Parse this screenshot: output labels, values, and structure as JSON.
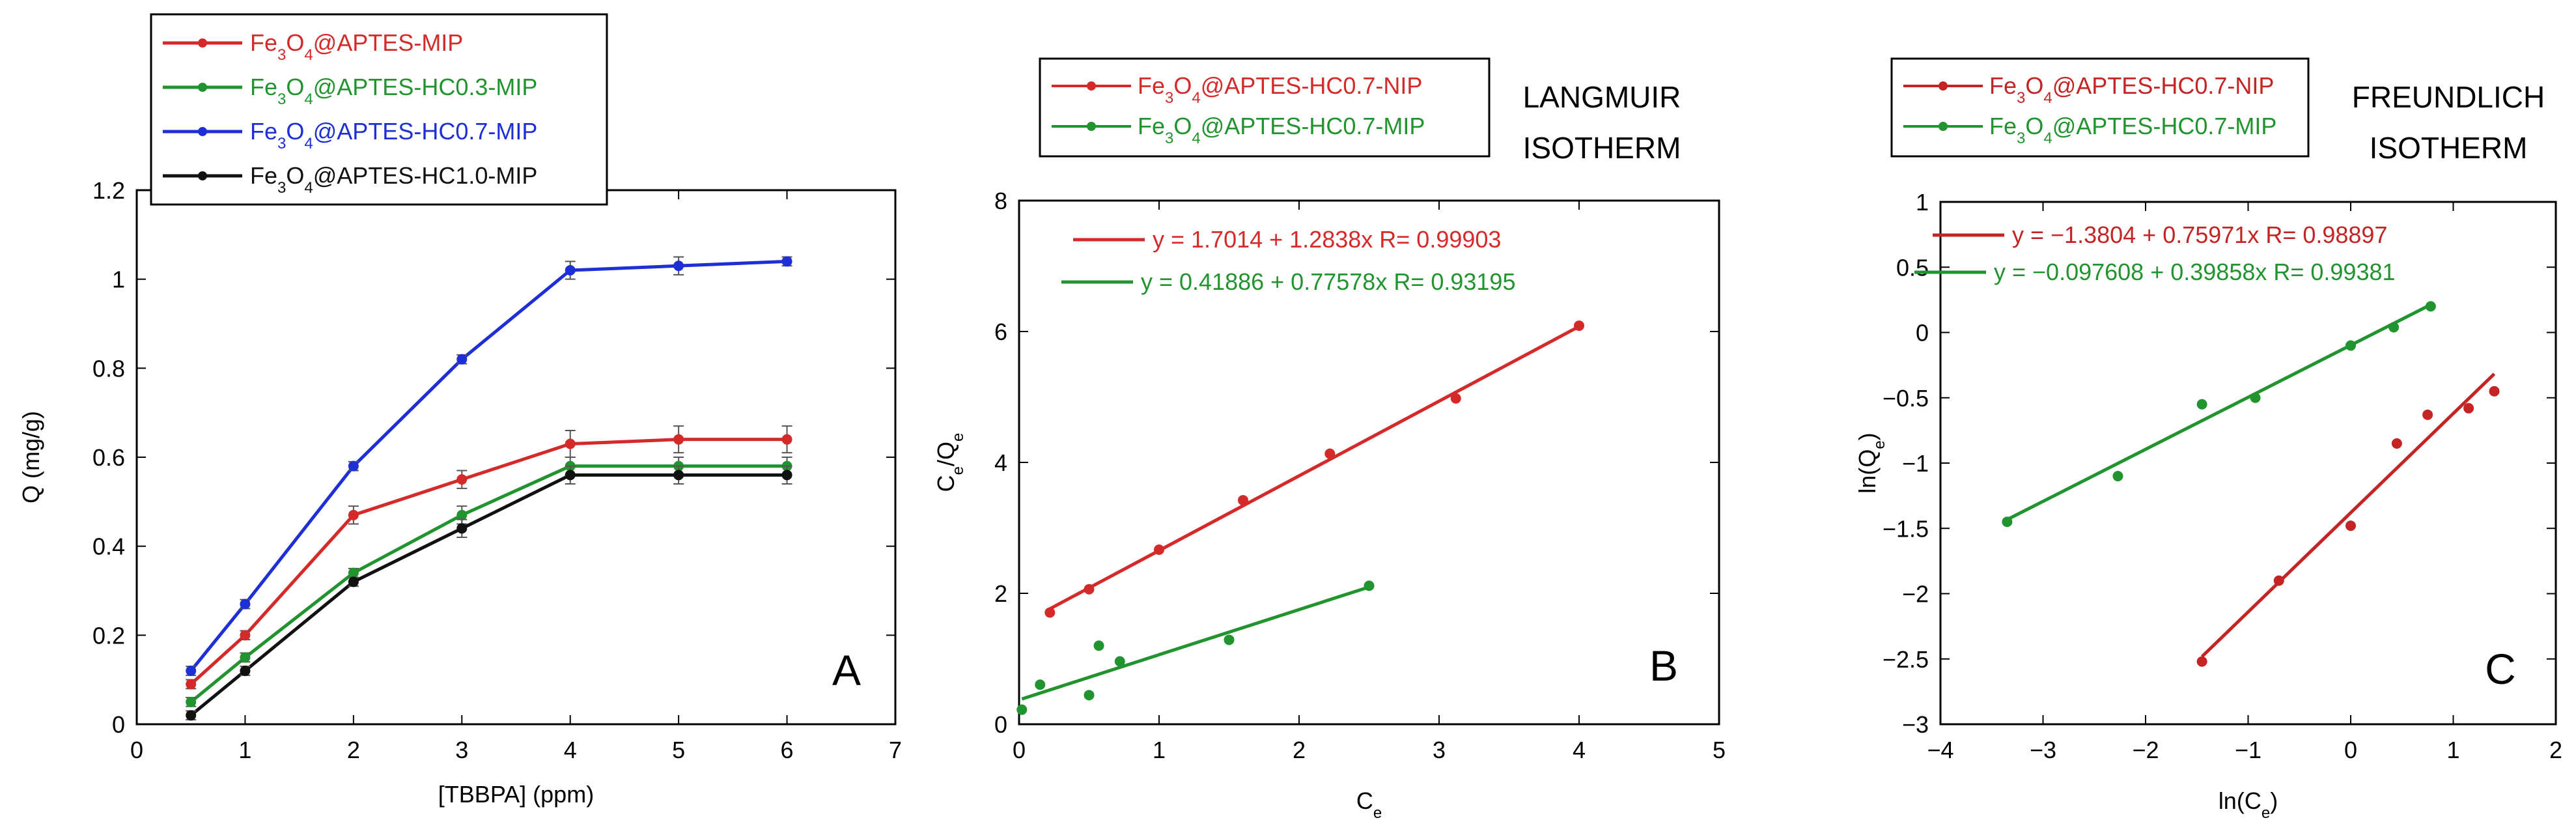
{
  "chart_data": [
    {
      "type": "line",
      "panel_label": "A",
      "xlabel": "[TBBPA] (ppm)",
      "ylabel": "Q (mg/g)",
      "xlim": [
        0,
        7
      ],
      "ylim": [
        0,
        1.2
      ],
      "x_ticks": [
        "0",
        "1",
        "2",
        "3",
        "4",
        "5",
        "6",
        "7"
      ],
      "y_ticks": [
        "0",
        "0.2",
        "0.4",
        "0.6",
        "0.8",
        "1",
        "1.2"
      ],
      "x": [
        0.5,
        1,
        2,
        3,
        4,
        5,
        6
      ],
      "legend_position": "top",
      "series": [
        {
          "name_parts": [
            "Fe",
            "3",
            "O",
            "4",
            "@APTES-MIP"
          ],
          "color": "#d42a2a",
          "values": [
            0.09,
            0.2,
            0.47,
            0.55,
            0.63,
            0.64,
            0.64
          ],
          "errors": [
            0.01,
            0.01,
            0.02,
            0.02,
            0.03,
            0.03,
            0.03
          ]
        },
        {
          "name_parts": [
            "Fe",
            "3",
            "O",
            "4",
            "@APTES-HC0.3-MIP"
          ],
          "color": "#22942f",
          "values": [
            0.05,
            0.15,
            0.34,
            0.47,
            0.58,
            0.58,
            0.58
          ],
          "errors": [
            0.01,
            0.01,
            0.01,
            0.02,
            0.02,
            0.02,
            0.02
          ]
        },
        {
          "name_parts": [
            "Fe",
            "3",
            "O",
            "4",
            "@APTES-HC0.7-MIP"
          ],
          "color": "#1f2fd6",
          "values": [
            0.12,
            0.27,
            0.58,
            0.82,
            1.02,
            1.03,
            1.04
          ],
          "errors": [
            0.01,
            0.01,
            0.01,
            0.01,
            0.02,
            0.02,
            0.01
          ]
        },
        {
          "name_parts": [
            "Fe",
            "3",
            "O",
            "4",
            "@APTES-HC1.0-MIP"
          ],
          "color": "#111111",
          "values": [
            0.02,
            0.12,
            0.32,
            0.44,
            0.56,
            0.56,
            0.56
          ],
          "errors": [
            0.01,
            0.01,
            0.01,
            0.02,
            0.02,
            0.02,
            0.02
          ]
        }
      ]
    },
    {
      "type": "scatter",
      "panel_label": "B",
      "title_lines": [
        "LANGMUIR",
        "ISOTHERM"
      ],
      "xlabel_parts": [
        "C",
        "e"
      ],
      "ylabel_parts": [
        "C",
        "e",
        "/Q",
        "e"
      ],
      "xlim": [
        0,
        5
      ],
      "ylim": [
        0,
        9
      ],
      "x_ticks": [
        "0",
        "1",
        "2",
        "3",
        "4",
        "5"
      ],
      "y_ticks": [
        "0",
        "2",
        "4",
        "6",
        "8"
      ],
      "legend_position": "top",
      "series": [
        {
          "name_parts": [
            "Fe",
            "3",
            "O",
            "4",
            "@APTES-HC0.7-NIP"
          ],
          "color": "#d42a2a",
          "x": [
            0.22,
            0.5,
            1.0,
            1.6,
            2.22,
            3.12,
            4.0
          ],
          "y": [
            1.92,
            2.32,
            3.0,
            3.85,
            4.65,
            5.6,
            6.85
          ],
          "fit": {
            "intercept": 1.7014,
            "slope": 1.2838,
            "x_range": [
              0.22,
              4.0
            ]
          },
          "equation": "y = 1.7014 + 1.2838x   R= 0.99903"
        },
        {
          "name_parts": [
            "Fe",
            "3",
            "O",
            "4",
            "@APTES-HC0.7-MIP"
          ],
          "color": "#22942f",
          "x": [
            0.02,
            0.15,
            0.5,
            0.57,
            0.72,
            1.5,
            2.5
          ],
          "y": [
            0.25,
            0.68,
            0.5,
            1.35,
            1.08,
            1.45,
            2.38
          ],
          "fit": {
            "intercept": 0.41886,
            "slope": 0.77578,
            "x_range": [
              0.02,
              2.5
            ]
          },
          "equation": "y = 0.41886 + 0.77578x   R= 0.93195"
        }
      ]
    },
    {
      "type": "scatter",
      "panel_label": "C",
      "title_lines": [
        "FREUNDLICH",
        "ISOTHERM"
      ],
      "xlabel_parts": [
        "ln(C",
        "e",
        ")"
      ],
      "ylabel_parts": [
        "ln(Q",
        "e",
        ")"
      ],
      "xlim": [
        -4,
        2
      ],
      "ylim": [
        -3,
        1
      ],
      "x_ticks": [
        "−4",
        "−3",
        "−2",
        "−1",
        "0",
        "1",
        "2"
      ],
      "y_ticks": [
        "−3",
        "−2.5",
        "−2",
        "−1.5",
        "−1",
        "−0.5",
        "0",
        "0.5",
        "1"
      ],
      "legend_position": "top",
      "series": [
        {
          "name_parts": [
            "Fe",
            "3",
            "O",
            "4",
            "@APTES-HC0.7-NIP"
          ],
          "color": "#c42424",
          "x": [
            -1.45,
            -0.7,
            0.0,
            0.45,
            0.75,
            1.15,
            1.4
          ],
          "y": [
            -2.52,
            -1.9,
            -1.48,
            -0.85,
            -0.63,
            -0.58,
            -0.45
          ],
          "fit": {
            "intercept": -1.3804,
            "slope": 0.75971,
            "x_range": [
              -1.45,
              1.4
            ]
          },
          "equation": "y = −1.3804 + 0.75971x   R= 0.98897"
        },
        {
          "name_parts": [
            "Fe",
            "3",
            "O",
            "4",
            "@APTES-HC0.7-MIP"
          ],
          "color": "#22942f",
          "x": [
            -3.35,
            -2.27,
            -1.45,
            -0.93,
            0.0,
            0.42,
            0.78
          ],
          "y": [
            -1.45,
            -1.1,
            -0.55,
            -0.5,
            -0.1,
            0.04,
            0.2
          ],
          "fit": {
            "intercept": -0.097608,
            "slope": 0.39858,
            "x_range": [
              -3.35,
              0.78
            ]
          },
          "equation": "y = −0.097608 + 0.39858x   R= 0.99381"
        }
      ]
    }
  ]
}
